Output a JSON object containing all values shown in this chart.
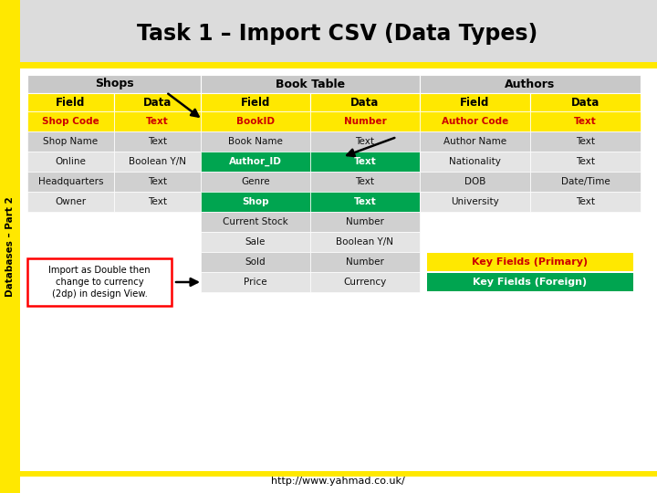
{
  "title": "Task 1 – Import CSV (Data Types)",
  "url": "http://www.yahmad.co.uk/",
  "sidebar_text": "Databases – Part 2",
  "yellow": "#FFE800",
  "green": "#00A550",
  "white": "#FFFFFF",
  "red_text": "#CC0000",
  "shops_header": "Shops",
  "book_header": "Book Table",
  "authors_header": "Authors",
  "shops_rows": [
    [
      "Shop Code",
      "Text",
      "primary"
    ],
    [
      "Shop Name",
      "Text",
      "normal"
    ],
    [
      "Online",
      "Boolean Y/N",
      "normal"
    ],
    [
      "Headquarters",
      "Text",
      "normal"
    ],
    [
      "Owner",
      "Text",
      "normal"
    ]
  ],
  "book_rows": [
    [
      "BookID",
      "Number",
      "primary"
    ],
    [
      "Book Name",
      "Text",
      "normal"
    ],
    [
      "Author_ID",
      "Text",
      "foreign"
    ],
    [
      "Genre",
      "Text",
      "normal"
    ],
    [
      "Shop",
      "Text",
      "foreign"
    ],
    [
      "Current Stock",
      "Number",
      "normal"
    ],
    [
      "Sale",
      "Boolean Y/N",
      "normal"
    ],
    [
      "Sold",
      "Number",
      "normal"
    ],
    [
      "Price",
      "Currency",
      "normal"
    ]
  ],
  "authors_rows": [
    [
      "Author Code",
      "Text",
      "primary"
    ],
    [
      "Author Name",
      "Text",
      "normal"
    ],
    [
      "Nationality",
      "Text",
      "normal"
    ],
    [
      "DOB",
      "Date/Time",
      "normal"
    ],
    [
      "University",
      "Text",
      "normal"
    ]
  ],
  "note_text": "Import as Double then\nchange to currency\n(2dp) in design View.",
  "legend1": "Key Fields (Primary)",
  "legend2": "Key Fields (Foreign)"
}
